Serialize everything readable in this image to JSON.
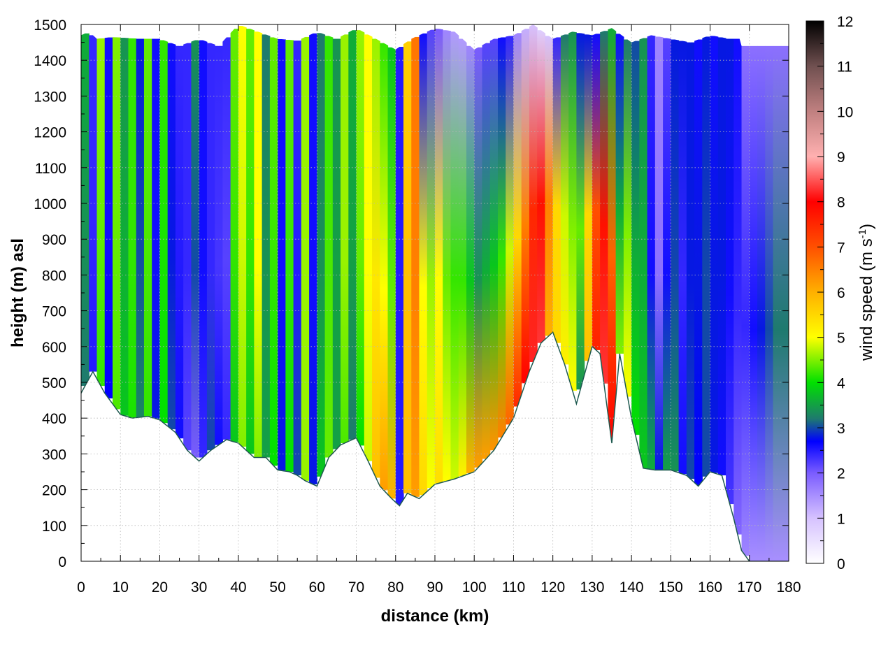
{
  "chart_data": {
    "type": "heatmap",
    "title": "",
    "xlabel": "distance (km)",
    "ylabel": "height (m) asl",
    "xlim": [
      0,
      180
    ],
    "ylim": [
      0,
      1500
    ],
    "x_ticks": [
      "0",
      "10",
      "20",
      "30",
      "40",
      "50",
      "60",
      "70",
      "80",
      "90",
      "100",
      "110",
      "120",
      "130",
      "140",
      "150",
      "160",
      "170",
      "180"
    ],
    "y_ticks": [
      "0",
      "100",
      "200",
      "300",
      "400",
      "500",
      "600",
      "700",
      "800",
      "900",
      "1000",
      "1100",
      "1200",
      "1300",
      "1400",
      "1500"
    ],
    "grid": true,
    "colorbar": {
      "label_main": "wind speed (m s",
      "label_sup": "-1",
      "label_end": ")",
      "range": [
        0,
        12
      ],
      "ticks": [
        "0",
        "1",
        "2",
        "3",
        "4",
        "5",
        "6",
        "7",
        "8",
        "9",
        "10",
        "11",
        "12"
      ],
      "palette": [
        {
          "v": 0,
          "c": "#ffffff"
        },
        {
          "v": 1,
          "c": "#d6c2ff"
        },
        {
          "v": 2,
          "c": "#7a5cff"
        },
        {
          "v": 2.7,
          "c": "#0000ff"
        },
        {
          "v": 3.2,
          "c": "#1e7a6e"
        },
        {
          "v": 4,
          "c": "#00e000"
        },
        {
          "v": 5,
          "c": "#ffff00"
        },
        {
          "v": 6,
          "c": "#ffb000"
        },
        {
          "v": 7,
          "c": "#ff5000"
        },
        {
          "v": 8,
          "c": "#ff0000"
        },
        {
          "v": 9,
          "c": "#ffb0b0"
        },
        {
          "v": 10,
          "c": "#c08080"
        },
        {
          "v": 11,
          "c": "#705050"
        },
        {
          "v": 12,
          "c": "#000000"
        }
      ]
    },
    "terrain": {
      "distance_km": [
        0,
        3,
        6,
        10,
        13,
        17,
        20,
        24,
        27,
        30,
        33,
        37,
        40,
        44,
        47,
        50,
        53,
        55,
        57,
        60,
        63,
        66,
        70,
        73,
        76,
        79,
        81,
        83,
        86,
        90,
        95,
        100,
        105,
        110,
        114,
        117,
        120,
        123,
        126,
        128,
        130,
        132,
        135,
        137,
        140,
        143,
        146,
        150,
        154,
        157,
        160,
        163,
        166,
        168,
        170,
        180
      ],
      "height_m": [
        470,
        530,
        470,
        410,
        400,
        405,
        395,
        360,
        310,
        280,
        310,
        340,
        330,
        290,
        290,
        255,
        250,
        240,
        225,
        210,
        290,
        325,
        345,
        280,
        210,
        175,
        155,
        190,
        175,
        215,
        230,
        250,
        310,
        400,
        530,
        610,
        640,
        550,
        440,
        520,
        600,
        580,
        330,
        580,
        400,
        260,
        255,
        255,
        240,
        210,
        250,
        240,
        120,
        30,
        0,
        0
      ]
    },
    "tops_m": {
      "distance_km": [
        0,
        2,
        4,
        8,
        15,
        20,
        25,
        30,
        35,
        40,
        45,
        50,
        55,
        60,
        65,
        70,
        75,
        80,
        84,
        90,
        95,
        100,
        105,
        110,
        115,
        120,
        125,
        130,
        135,
        140,
        145,
        150,
        155,
        160,
        165,
        167.5,
        168,
        180
      ],
      "height_m": [
        1470,
        1480,
        1460,
        1465,
        1460,
        1460,
        1440,
        1460,
        1440,
        1500,
        1480,
        1460,
        1455,
        1480,
        1460,
        1490,
        1460,
        1430,
        1460,
        1490,
        1480,
        1430,
        1460,
        1470,
        1500,
        1460,
        1480,
        1470,
        1490,
        1450,
        1470,
        1460,
        1450,
        1470,
        1460,
        1460,
        1440,
        1440
      ]
    },
    "approx_field": {
      "note_type": "speed columns",
      "x_km": [
        1,
        3,
        5,
        7,
        9,
        11,
        13,
        15,
        17,
        19,
        21,
        23,
        25,
        27,
        29,
        31,
        33,
        35,
        37,
        39,
        41,
        43,
        45,
        47,
        49,
        51,
        53,
        55,
        57,
        59,
        61,
        63,
        65,
        67,
        69,
        71,
        73,
        75,
        77,
        79,
        81,
        83,
        85,
        87,
        89,
        91,
        93,
        95,
        97,
        99,
        101,
        103,
        105,
        107,
        109,
        111,
        113,
        115,
        117,
        119,
        121,
        123,
        125,
        127,
        129,
        131,
        133,
        135,
        137,
        139,
        141,
        143,
        145,
        147,
        149,
        151,
        153,
        155,
        157,
        159,
        161,
        163,
        165,
        167,
        169,
        171,
        173,
        175,
        177,
        179
      ],
      "low_speed": [
        3.2,
        2.5,
        4.2,
        2.7,
        4.3,
        3.8,
        4.1,
        3.3,
        4.2,
        2.8,
        4.0,
        3.0,
        2.6,
        2.2,
        2.0,
        2.4,
        3.0,
        2.6,
        2.4,
        3.8,
        4.5,
        3.8,
        4.5,
        3.5,
        4.0,
        2.8,
        4.0,
        3.0,
        4.6,
        2.8,
        3.8,
        4.4,
        3.5,
        4.3,
        3.2,
        4.0,
        4.8,
        5.8,
        6.2,
        6.0,
        2.5,
        5.8,
        6.2,
        5.5,
        5.0,
        5.4,
        5.0,
        4.8,
        5.2,
        6.0,
        6.2,
        6.2,
        6.3,
        6.5,
        6.8,
        7.5,
        8.0,
        8.2,
        8.3,
        6.0,
        5.5,
        5.2,
        5.0,
        3.4,
        5.8,
        7.6,
        8.3,
        8.0,
        4.5,
        5.0,
        4.0,
        3.8,
        3.6,
        2.8,
        3.5,
        3.4,
        2.6,
        3.0,
        2.7,
        3.0,
        2.8,
        2.6,
        2.3,
        1.9,
        1.6,
        1.5,
        1.5,
        1.5,
        1.5,
        1.5
      ],
      "mid_speed": [
        3.4,
        2.4,
        4.4,
        2.6,
        4.4,
        3.6,
        4.2,
        3.0,
        4.3,
        2.6,
        4.1,
        2.8,
        2.5,
        2.4,
        3.0,
        2.6,
        2.4,
        2.3,
        2.2,
        4.2,
        4.8,
        4.2,
        5.0,
        3.4,
        4.2,
        2.6,
        4.2,
        2.5,
        4.6,
        2.6,
        3.4,
        4.3,
        3.5,
        4.6,
        3.5,
        4.4,
        5.0,
        5.3,
        5.0,
        4.4,
        2.5,
        5.8,
        6.5,
        5.0,
        4.6,
        5.0,
        4.4,
        4.2,
        4.2,
        3.8,
        3.4,
        3.6,
        3.8,
        4.2,
        4.8,
        5.5,
        6.5,
        7.5,
        7.8,
        6.5,
        5.5,
        4.8,
        4.5,
        4.4,
        5.5,
        7.0,
        7.8,
        6.8,
        3.6,
        4.5,
        3.6,
        3.6,
        2.6,
        1.8,
        2.6,
        3.0,
        2.4,
        2.8,
        2.8,
        3.0,
        2.8,
        2.8,
        2.6,
        2.4,
        2.4,
        2.6,
        2.8,
        3.0,
        3.2,
        3.2
      ],
      "high_speed": [
        3.6,
        2.4,
        4.6,
        2.6,
        4.5,
        3.4,
        4.2,
        2.8,
        4.4,
        2.6,
        4.2,
        2.6,
        2.4,
        2.4,
        3.4,
        2.6,
        2.4,
        2.4,
        2.4,
        4.4,
        5.0,
        4.4,
        5.0,
        3.2,
        4.4,
        2.6,
        4.4,
        2.4,
        4.6,
        2.6,
        3.2,
        4.2,
        3.4,
        4.6,
        3.6,
        4.6,
        5.0,
        4.6,
        4.2,
        3.8,
        2.5,
        5.6,
        6.6,
        2.6,
        2.2,
        2.0,
        1.6,
        1.4,
        1.4,
        1.6,
        2.0,
        2.2,
        2.2,
        2.6,
        2.4,
        1.6,
        1.2,
        1.0,
        0.8,
        1.0,
        2.4,
        3.2,
        3.4,
        2.8,
        2.8,
        2.6,
        3.2,
        3.6,
        2.6,
        3.2,
        3.0,
        3.4,
        2.4,
        1.6,
        2.2,
        2.8,
        2.8,
        2.8,
        2.6,
        2.8,
        2.6,
        2.8,
        2.8,
        2.6,
        1.8,
        1.8,
        1.8,
        1.8,
        1.8,
        1.8
      ]
    }
  }
}
